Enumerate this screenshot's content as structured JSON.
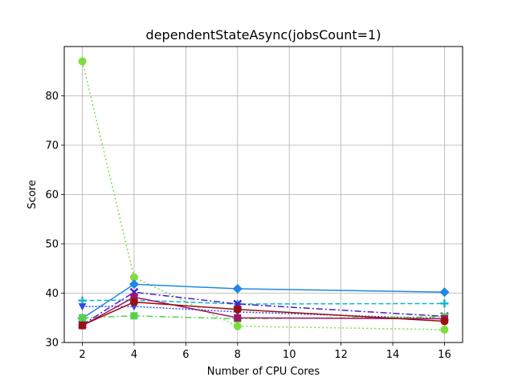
{
  "chart_data": {
    "type": "line",
    "title": "dependentStateAsync(jobsCount=1)",
    "xlabel": "Number of CPU Cores",
    "ylabel": "Score",
    "x": [
      2,
      4,
      8,
      16
    ],
    "xlim": [
      1.3,
      16.7
    ],
    "ylim": [
      30,
      90
    ],
    "xticks": [
      2,
      4,
      6,
      8,
      10,
      12,
      14,
      16
    ],
    "yticks": [
      30,
      40,
      50,
      60,
      70,
      80
    ],
    "grid": true,
    "legend": "none",
    "series": [
      {
        "color": "#7fdc3e",
        "dash": "2,3",
        "marker": "circle",
        "values": [
          87.0,
          43.2,
          33.3,
          32.6
        ]
      },
      {
        "color": "#1e88e5",
        "dash": "",
        "marker": "diamond",
        "values": [
          34.9,
          41.8,
          40.9,
          40.2
        ]
      },
      {
        "color": "#12b5cc",
        "dash": "6,3",
        "marker": "plus",
        "values": [
          38.5,
          38.6,
          37.8,
          37.9
        ]
      },
      {
        "color": "#4a1fc7",
        "dash": "8,3,2,3",
        "marker": "x",
        "values": [
          33.6,
          40.2,
          37.8,
          35.3
        ]
      },
      {
        "color": "#2d4de0",
        "dash": "2,2",
        "marker": "triangle-down",
        "values": [
          37.3,
          37.3,
          36.2,
          34.8
        ]
      },
      {
        "color": "#56d14a",
        "dash": "8,3,2,3",
        "marker": "square",
        "values": [
          35.0,
          35.4,
          34.8,
          35.2
        ]
      },
      {
        "color": "#a01568",
        "dash": "",
        "marker": "square",
        "values": [
          33.4,
          39.2,
          35.0,
          34.8
        ]
      },
      {
        "color": "#9a0f0f",
        "dash": "",
        "marker": "circle",
        "values": [
          33.5,
          38.2,
          36.7,
          34.3
        ]
      }
    ]
  }
}
